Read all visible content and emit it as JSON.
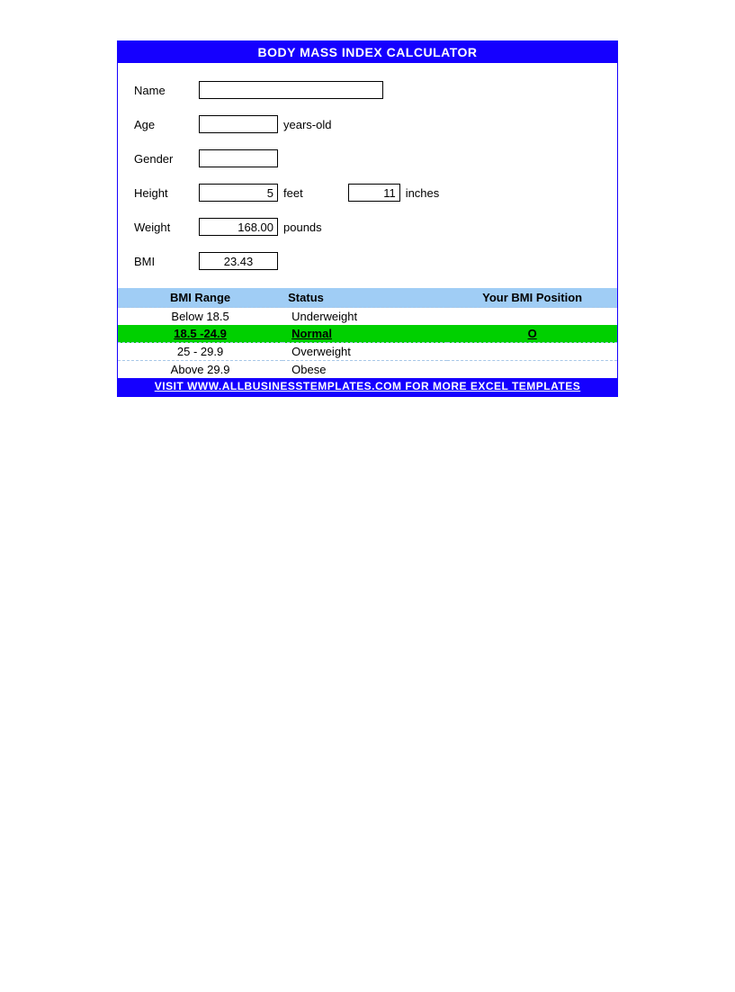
{
  "colors": {
    "header_bg": "#1500ff",
    "header_text": "#ffffff",
    "table_header_bg": "#a0cdf5",
    "highlight_bg": "#00d000",
    "row_border": "#a8c8e8",
    "input_border": "#000000",
    "body_bg": "#ffffff"
  },
  "header": {
    "title": "BODY MASS INDEX CALCULATOR"
  },
  "form": {
    "name": {
      "label": "Name",
      "value": ""
    },
    "age": {
      "label": "Age",
      "value": "",
      "unit": "years-old"
    },
    "gender": {
      "label": "Gender",
      "value": ""
    },
    "height": {
      "label": "Height",
      "feet_value": "5",
      "feet_unit": "feet",
      "inches_value": "11",
      "inches_unit": "inches"
    },
    "weight": {
      "label": "Weight",
      "value": "168.00",
      "unit": "pounds"
    },
    "bmi": {
      "label": "BMI",
      "value": "23.43"
    }
  },
  "table": {
    "headers": {
      "range": "BMI Range",
      "status": "Status",
      "position": "Your BMI Position"
    },
    "rows": [
      {
        "range": "Below 18.5",
        "status": "Underweight",
        "position": "",
        "highlight": false
      },
      {
        "range": "18.5 -24.9",
        "status": "Normal",
        "position": "O",
        "highlight": true
      },
      {
        "range": "25 - 29.9",
        "status": "Overweight",
        "position": "",
        "highlight": false
      },
      {
        "range": "Above 29.9",
        "status": "Obese",
        "position": "",
        "highlight": false
      }
    ]
  },
  "footer": {
    "text": "VISIT WWW.ALLBUSINESSTEMPLATES.COM FOR MORE EXCEL TEMPLATES"
  }
}
